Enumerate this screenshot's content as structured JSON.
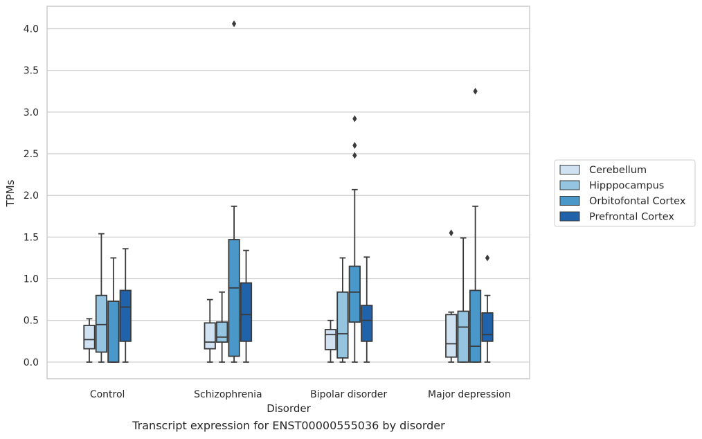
{
  "caption": "Transcript expression for ENST00000555036 by disorder",
  "chart_data": {
    "type": "box",
    "xlabel": "Disorder",
    "ylabel": "TPMs",
    "ylim": [
      -0.2,
      4.27
    ],
    "yticks": [
      0.0,
      0.5,
      1.0,
      1.5,
      2.0,
      2.5,
      3.0,
      3.5,
      4.0
    ],
    "ytick_labels": [
      "0.0",
      "0.5",
      "1.0",
      "1.5",
      "2.0",
      "2.5",
      "3.0",
      "3.5",
      "4.0"
    ],
    "grid": "horizontal",
    "legend_position": "right",
    "categories": [
      "Control",
      "Schizophrenia",
      "Bipolar disorder",
      "Major depression"
    ],
    "series": [
      {
        "name": "Cerebellum",
        "color": "#d0e1f2",
        "boxes": [
          {
            "whisker_low": 0.0,
            "q1": 0.16,
            "median": 0.27,
            "q3": 0.44,
            "whisker_high": 0.52,
            "outliers": []
          },
          {
            "whisker_low": 0.0,
            "q1": 0.16,
            "median": 0.24,
            "q3": 0.47,
            "whisker_high": 0.75,
            "outliers": []
          },
          {
            "whisker_low": 0.0,
            "q1": 0.15,
            "median": 0.33,
            "q3": 0.39,
            "whisker_high": 0.5,
            "outliers": []
          },
          {
            "whisker_low": 0.0,
            "q1": 0.06,
            "median": 0.22,
            "q3": 0.57,
            "whisker_high": 0.6,
            "outliers": [
              1.55
            ]
          }
        ]
      },
      {
        "name": "Hipppocampus",
        "color": "#94c4df",
        "boxes": [
          {
            "whisker_low": 0.0,
            "q1": 0.12,
            "median": 0.45,
            "q3": 0.8,
            "whisker_high": 1.54,
            "outliers": []
          },
          {
            "whisker_low": 0.0,
            "q1": 0.24,
            "median": 0.3,
            "q3": 0.48,
            "whisker_high": 0.84,
            "outliers": []
          },
          {
            "whisker_low": 0.0,
            "q1": 0.05,
            "median": 0.34,
            "q3": 0.84,
            "whisker_high": 1.25,
            "outliers": []
          },
          {
            "whisker_low": 0.0,
            "q1": 0.0,
            "median": 0.42,
            "q3": 0.61,
            "whisker_high": 1.49,
            "outliers": []
          }
        ]
      },
      {
        "name": "Orbitofontal Cortex",
        "color": "#4a98c9",
        "boxes": [
          {
            "whisker_low": 0.0,
            "q1": 0.0,
            "median": 0.0,
            "q3": 0.73,
            "whisker_high": 1.25,
            "outliers": []
          },
          {
            "whisker_low": 0.0,
            "q1": 0.07,
            "median": 0.89,
            "q3": 1.47,
            "whisker_high": 1.87,
            "outliers": [
              4.06
            ]
          },
          {
            "whisker_low": 0.0,
            "q1": 0.48,
            "median": 0.84,
            "q3": 1.15,
            "whisker_high": 2.07,
            "outliers": [
              2.92,
              2.6,
              2.48
            ]
          },
          {
            "whisker_low": 0.0,
            "q1": 0.0,
            "median": 0.19,
            "q3": 0.86,
            "whisker_high": 1.87,
            "outliers": [
              3.25
            ]
          }
        ]
      },
      {
        "name": "Prefrontal Cortex",
        "color": "#2163aa",
        "boxes": [
          {
            "whisker_low": 0.0,
            "q1": 0.25,
            "median": 0.66,
            "q3": 0.86,
            "whisker_high": 1.36,
            "outliers": []
          },
          {
            "whisker_low": 0.0,
            "q1": 0.25,
            "median": 0.57,
            "q3": 0.95,
            "whisker_high": 1.34,
            "outliers": []
          },
          {
            "whisker_low": 0.0,
            "q1": 0.25,
            "median": 0.5,
            "q3": 0.68,
            "whisker_high": 1.26,
            "outliers": []
          },
          {
            "whisker_low": 0.0,
            "q1": 0.25,
            "median": 0.33,
            "q3": 0.59,
            "whisker_high": 0.8,
            "outliers": [
              1.25
            ]
          }
        ]
      }
    ]
  }
}
